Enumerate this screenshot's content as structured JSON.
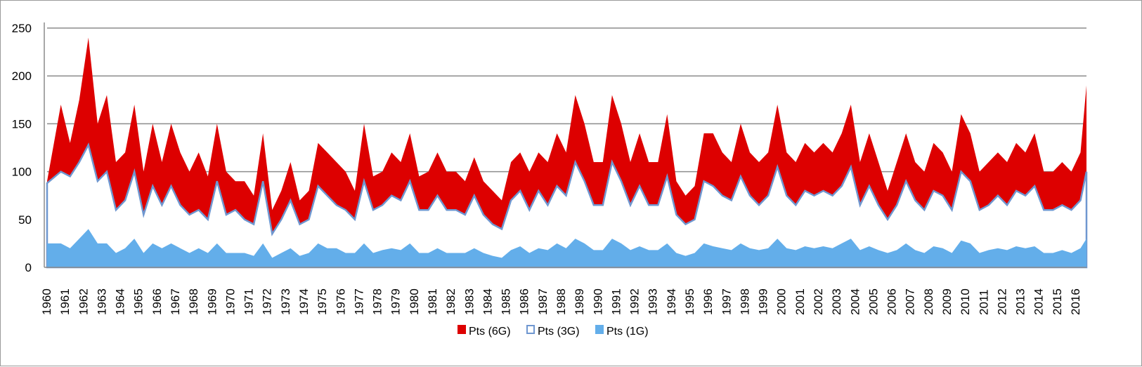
{
  "chart_data": {
    "type": "area",
    "stacked": false,
    "title": "",
    "xlabel": "",
    "ylabel": "",
    "ylim": [
      0,
      250
    ],
    "yticks": [
      0,
      50,
      100,
      150,
      200,
      250
    ],
    "grid": true,
    "legend_position": "bottom",
    "x_tick_labels": [
      "1960",
      "1961",
      "1962",
      "1963",
      "1964",
      "1965",
      "1966",
      "1967",
      "1968",
      "1969",
      "1970",
      "1971",
      "1972",
      "1973",
      "1974",
      "1975",
      "1976",
      "1977",
      "1978",
      "1979",
      "1980",
      "1981",
      "1982",
      "1983",
      "1984",
      "1985",
      "1986",
      "1987",
      "1988",
      "1989",
      "1990",
      "1991",
      "1992",
      "1993",
      "1994",
      "1995",
      "1996",
      "1997",
      "1998",
      "1999",
      "2000",
      "2001",
      "2002",
      "2003",
      "2004",
      "2005",
      "2006",
      "2007",
      "2008",
      "2009",
      "2010",
      "2011",
      "2012",
      "2013",
      "2014",
      "2015",
      "2016"
    ],
    "x_note": "two samples per year (first half, second half), approximated from the figure",
    "series": [
      {
        "name": "Pts (6G)",
        "color": "#dd0000",
        "values": [
          90,
          170,
          130,
          175,
          240,
          150,
          180,
          110,
          120,
          170,
          100,
          150,
          110,
          150,
          120,
          100,
          120,
          95,
          150,
          100,
          90,
          90,
          75,
          140,
          60,
          80,
          110,
          70,
          80,
          130,
          120,
          110,
          100,
          80,
          150,
          95,
          100,
          120,
          110,
          140,
          95,
          100,
          120,
          100,
          100,
          90,
          115,
          90,
          80,
          70,
          110,
          120,
          100,
          120,
          110,
          140,
          120,
          180,
          150,
          110,
          110,
          180,
          150,
          110,
          140,
          110,
          110,
          160,
          90,
          75,
          85,
          140,
          140,
          120,
          110,
          150,
          120,
          110,
          120,
          170,
          120,
          110,
          130,
          120,
          130,
          120,
          140,
          170,
          110,
          140,
          110,
          80,
          110,
          140,
          110,
          100,
          130,
          120,
          100,
          160,
          140,
          100,
          110,
          120,
          110,
          130,
          120,
          140,
          100,
          100,
          110,
          100,
          120,
          190
        ]
      },
      {
        "name": "Pts (3G)",
        "color": "#6f97d0",
        "fill": "#ffffff",
        "values": [
          88,
          100,
          95,
          110,
          128,
          90,
          100,
          60,
          70,
          100,
          55,
          85,
          65,
          85,
          65,
          55,
          60,
          50,
          90,
          55,
          60,
          50,
          45,
          90,
          35,
          50,
          70,
          45,
          50,
          85,
          75,
          65,
          60,
          50,
          90,
          60,
          65,
          75,
          70,
          90,
          60,
          60,
          75,
          60,
          60,
          55,
          75,
          55,
          45,
          40,
          70,
          80,
          60,
          80,
          65,
          85,
          75,
          110,
          90,
          65,
          65,
          110,
          90,
          65,
          85,
          65,
          65,
          95,
          55,
          45,
          50,
          90,
          85,
          75,
          70,
          95,
          75,
          65,
          75,
          105,
          75,
          65,
          80,
          75,
          80,
          75,
          85,
          105,
          65,
          85,
          65,
          50,
          65,
          90,
          70,
          60,
          80,
          75,
          60,
          100,
          90,
          60,
          65,
          75,
          65,
          80,
          75,
          85,
          60,
          60,
          65,
          60,
          70,
          100
        ]
      },
      {
        "name": "Pts (1G)",
        "color": "#63aeea",
        "values": [
          25,
          25,
          20,
          30,
          40,
          25,
          25,
          15,
          20,
          30,
          15,
          25,
          20,
          25,
          20,
          15,
          20,
          15,
          25,
          15,
          15,
          15,
          12,
          25,
          10,
          15,
          20,
          12,
          15,
          25,
          20,
          20,
          15,
          15,
          25,
          15,
          18,
          20,
          18,
          25,
          15,
          15,
          20,
          15,
          15,
          15,
          20,
          15,
          12,
          10,
          18,
          22,
          15,
          20,
          18,
          25,
          20,
          30,
          25,
          18,
          18,
          30,
          25,
          18,
          22,
          18,
          18,
          25,
          15,
          12,
          15,
          25,
          22,
          20,
          18,
          25,
          20,
          18,
          20,
          30,
          20,
          18,
          22,
          20,
          22,
          20,
          25,
          30,
          18,
          22,
          18,
          15,
          18,
          25,
          18,
          15,
          22,
          20,
          15,
          28,
          25,
          15,
          18,
          20,
          18,
          22,
          20,
          22,
          15,
          15,
          18,
          15,
          20,
          30
        ]
      }
    ]
  }
}
